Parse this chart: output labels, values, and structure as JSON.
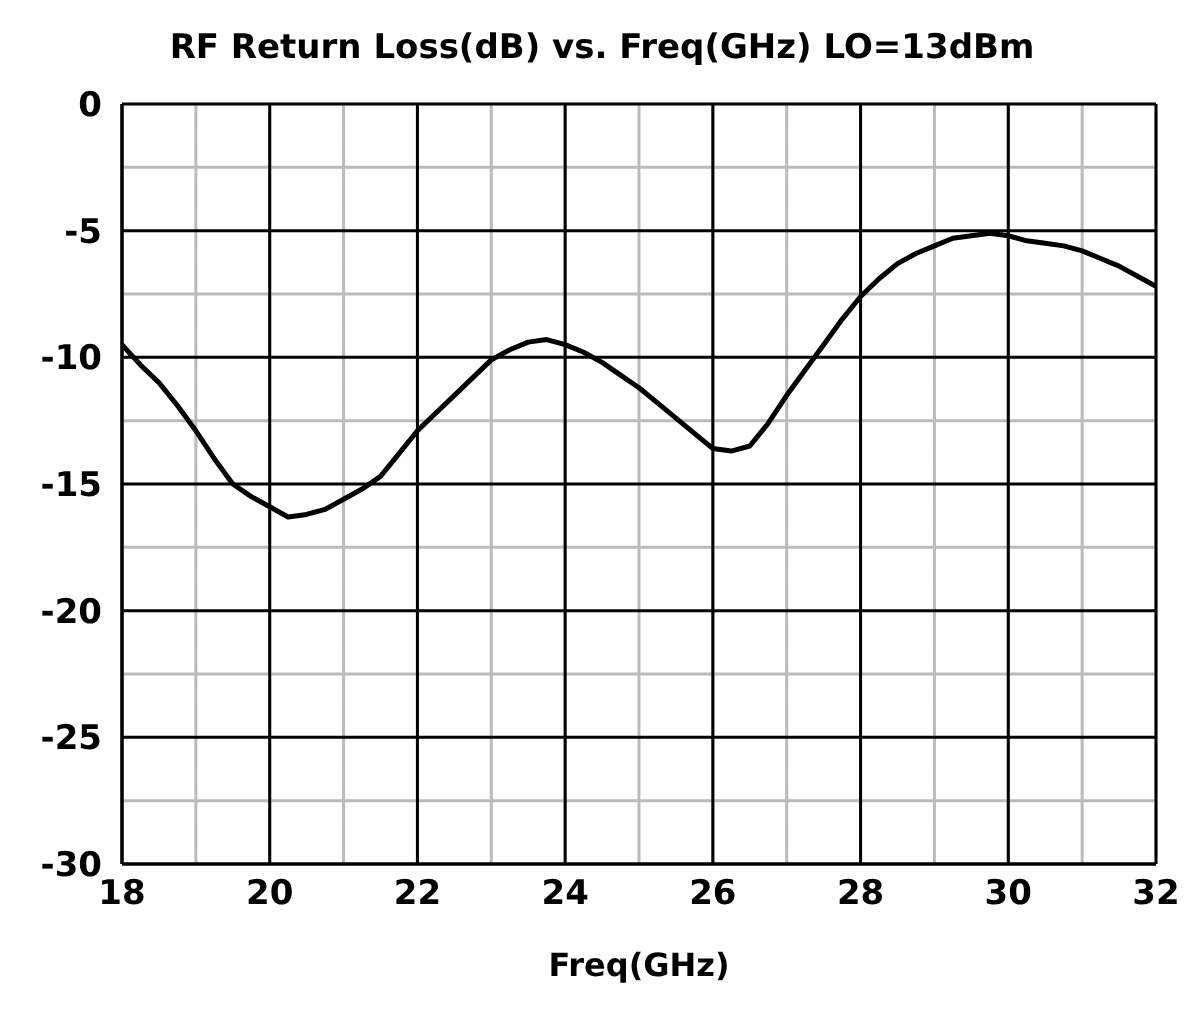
{
  "chart_data": {
    "type": "line",
    "title": "RF Return Loss(dB) vs. Freq(GHz) LO=13dBm",
    "xlabel": "Freq(GHz)",
    "x": [
      18,
      18.25,
      18.5,
      18.75,
      19,
      19.25,
      19.5,
      19.75,
      20,
      20.25,
      20.5,
      20.75,
      21,
      21.25,
      21.5,
      21.75,
      22,
      22.25,
      22.5,
      22.75,
      23,
      23.25,
      23.5,
      23.75,
      24,
      24.25,
      24.5,
      24.75,
      25,
      25.25,
      25.5,
      25.75,
      26,
      26.25,
      26.5,
      26.75,
      27,
      27.25,
      27.5,
      27.75,
      28,
      28.25,
      28.5,
      28.75,
      29,
      29.25,
      29.5,
      29.75,
      30,
      30.25,
      30.5,
      30.75,
      31,
      31.25,
      31.5,
      31.75,
      32
    ],
    "series": [
      {
        "color": "#000000",
        "values": [
          -9.5,
          -10.3,
          -11,
          -11.9,
          -12.9,
          -14,
          -15,
          -15.5,
          -15.9,
          -16.3,
          -16.2,
          -16,
          -15.6,
          -15.2,
          -14.7,
          -13.8,
          -12.9,
          -12.2,
          -11.5,
          -10.8,
          -10.1,
          -9.7,
          -9.4,
          -9.3,
          -9.5,
          -9.8,
          -10.2,
          -10.7,
          -11.2,
          -11.8,
          -12.4,
          -13,
          -13.6,
          -13.7,
          -13.5,
          -12.6,
          -11.5,
          -10.5,
          -9.5,
          -8.5,
          -7.6,
          -6.9,
          -6.3,
          -5.9,
          -5.6,
          -5.3,
          -5.2,
          -5.1,
          -5.2,
          -5.4,
          -5.5,
          -5.6,
          -5.8,
          -6.1,
          -6.4,
          -6.8,
          -7.2
        ]
      }
    ],
    "xlim": [
      18,
      32
    ],
    "xticks": [
      18,
      {
        "value": 19,
        "label": null
      },
      20,
      {
        "value": 21,
        "label": null
      },
      22,
      {
        "value": 23,
        "label": null
      },
      24,
      {
        "value": 25,
        "label": null
      },
      26,
      {
        "value": 27,
        "label": null
      },
      28,
      {
        "value": 29,
        "label": null
      },
      30,
      {
        "value": 31,
        "label": null
      },
      32
    ],
    "ylim": [
      -30,
      0
    ],
    "yticks": [
      -30,
      {
        "value": -27.5,
        "label": null
      },
      -25,
      {
        "value": -22.5,
        "label": null
      },
      -20,
      {
        "value": -17.5,
        "label": null
      },
      -15,
      {
        "value": -12.5,
        "label": null
      },
      -10,
      {
        "value": -7.5,
        "label": null
      },
      -5,
      {
        "value": -2.5,
        "label": null
      },
      0
    ],
    "grid": true,
    "legend": false,
    "marker": "none",
    "line_style": "solid"
  }
}
